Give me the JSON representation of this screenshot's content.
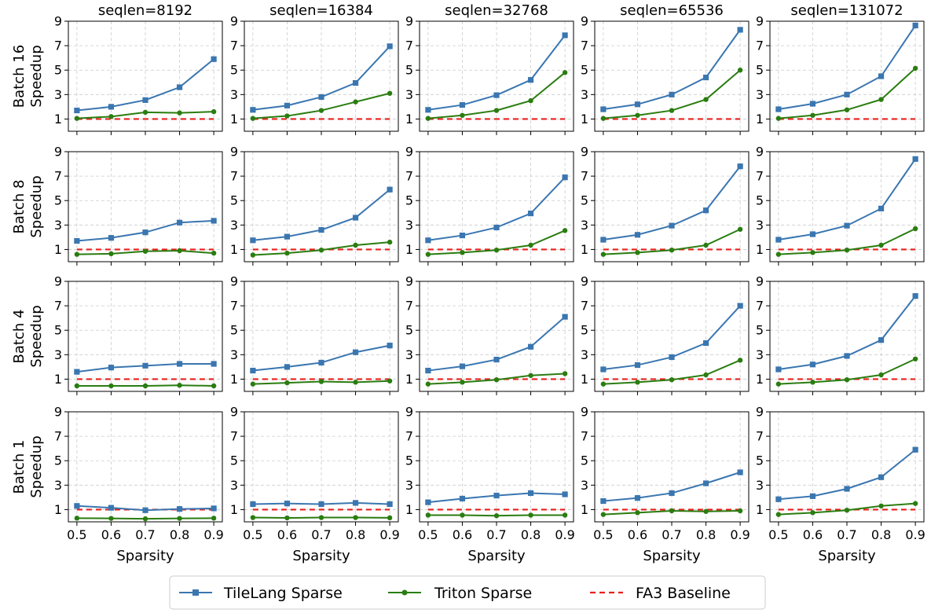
{
  "chart_data": {
    "type": "line",
    "rows": [
      "Batch 16",
      "Batch 8",
      "Batch 4",
      "Batch 1"
    ],
    "row_ylabel_suffix": "Speedup",
    "columns": [
      "seqlen=8192",
      "seqlen=16384",
      "seqlen=32768",
      "seqlen=65536",
      "seqlen=131072"
    ],
    "x": [
      0.5,
      0.6,
      0.7,
      0.8,
      0.9
    ],
    "x_tick_labels": [
      "0.5",
      "0.6",
      "0.7",
      "0.8",
      "0.9"
    ],
    "y_ticks": [
      1,
      3,
      5,
      7,
      9
    ],
    "y_tick_labels": [
      "1",
      "3",
      "5",
      "7",
      "9"
    ],
    "xlabel": "Sparsity",
    "ylim": [
      0,
      9
    ],
    "xlim": [
      0.475,
      0.925
    ],
    "grid": true,
    "legend": {
      "placement": "bottom-center",
      "entries": [
        "TileLang Sparse",
        "Triton Sparse",
        "FA3 Baseline"
      ]
    },
    "series_styles": [
      {
        "name": "TileLang Sparse",
        "color": "#3a76b0",
        "marker": "square",
        "line": "solid"
      },
      {
        "name": "Triton Sparse",
        "color": "#2a7d10",
        "marker": "circle",
        "line": "solid"
      },
      {
        "name": "FA3 Baseline",
        "color": "#e8201c",
        "marker": "none",
        "line": "dashed"
      }
    ],
    "panels": [
      [
        {
          "tilelang": [
            1.7,
            2.0,
            2.55,
            3.6,
            5.9
          ],
          "triton": [
            1.05,
            1.2,
            1.55,
            1.5,
            1.6
          ],
          "baseline": 1
        },
        {
          "tilelang": [
            1.75,
            2.1,
            2.8,
            3.95,
            6.95
          ],
          "triton": [
            1.05,
            1.25,
            1.7,
            2.4,
            3.1
          ],
          "baseline": 1
        },
        {
          "tilelang": [
            1.75,
            2.15,
            2.95,
            4.2,
            7.85
          ],
          "triton": [
            1.05,
            1.3,
            1.7,
            2.5,
            4.8
          ],
          "baseline": 1
        },
        {
          "tilelang": [
            1.8,
            2.2,
            3.0,
            4.4,
            8.3
          ],
          "triton": [
            1.05,
            1.3,
            1.7,
            2.6,
            5.0
          ],
          "baseline": 1
        },
        {
          "tilelang": [
            1.8,
            2.25,
            3.0,
            4.5,
            8.65
          ],
          "triton": [
            1.05,
            1.3,
            1.75,
            2.6,
            5.15
          ],
          "baseline": 1
        }
      ],
      [
        {
          "tilelang": [
            1.7,
            1.95,
            2.4,
            3.2,
            3.35
          ],
          "triton": [
            0.6,
            0.65,
            0.85,
            0.9,
            0.7
          ],
          "baseline": 1
        },
        {
          "tilelang": [
            1.75,
            2.05,
            2.6,
            3.6,
            5.9
          ],
          "triton": [
            0.55,
            0.7,
            0.95,
            1.35,
            1.6
          ],
          "baseline": 1
        },
        {
          "tilelang": [
            1.75,
            2.15,
            2.8,
            3.95,
            6.9
          ],
          "triton": [
            0.6,
            0.75,
            0.95,
            1.35,
            2.55
          ],
          "baseline": 1
        },
        {
          "tilelang": [
            1.8,
            2.2,
            2.95,
            4.2,
            7.8
          ],
          "triton": [
            0.6,
            0.75,
            0.95,
            1.35,
            2.65
          ],
          "baseline": 1
        },
        {
          "tilelang": [
            1.8,
            2.25,
            2.95,
            4.35,
            8.4
          ],
          "triton": [
            0.6,
            0.75,
            0.95,
            1.35,
            2.7
          ],
          "baseline": 1
        }
      ],
      [
        {
          "tilelang": [
            1.6,
            1.95,
            2.1,
            2.25,
            2.25
          ],
          "triton": [
            0.45,
            0.45,
            0.45,
            0.5,
            0.45
          ],
          "baseline": 1
        },
        {
          "tilelang": [
            1.7,
            2.0,
            2.35,
            3.2,
            3.75
          ],
          "triton": [
            0.6,
            0.7,
            0.8,
            0.75,
            0.85
          ],
          "baseline": 1
        },
        {
          "tilelang": [
            1.7,
            2.05,
            2.6,
            3.65,
            6.1
          ],
          "triton": [
            0.6,
            0.75,
            0.95,
            1.3,
            1.45
          ],
          "baseline": 1
        },
        {
          "tilelang": [
            1.8,
            2.15,
            2.8,
            3.95,
            7.0
          ],
          "triton": [
            0.6,
            0.75,
            0.95,
            1.35,
            2.55
          ],
          "baseline": 1
        },
        {
          "tilelang": [
            1.8,
            2.2,
            2.9,
            4.2,
            7.8
          ],
          "triton": [
            0.6,
            0.75,
            0.95,
            1.35,
            2.65
          ],
          "baseline": 1
        }
      ],
      [
        {
          "tilelang": [
            1.3,
            1.15,
            0.95,
            1.05,
            1.1
          ],
          "triton": [
            0.3,
            0.28,
            0.25,
            0.28,
            0.3
          ],
          "baseline": 1
        },
        {
          "tilelang": [
            1.45,
            1.5,
            1.45,
            1.55,
            1.45
          ],
          "triton": [
            0.35,
            0.32,
            0.35,
            0.35,
            0.33
          ],
          "baseline": 1
        },
        {
          "tilelang": [
            1.6,
            1.9,
            2.15,
            2.35,
            2.25
          ],
          "triton": [
            0.55,
            0.55,
            0.5,
            0.55,
            0.55
          ],
          "baseline": 1
        },
        {
          "tilelang": [
            1.7,
            1.95,
            2.35,
            3.15,
            4.05
          ],
          "triton": [
            0.6,
            0.75,
            0.9,
            0.85,
            0.9
          ],
          "baseline": 1
        },
        {
          "tilelang": [
            1.85,
            2.1,
            2.7,
            3.65,
            5.9
          ],
          "triton": [
            0.6,
            0.75,
            0.95,
            1.3,
            1.5
          ],
          "baseline": 1
        }
      ]
    ]
  }
}
